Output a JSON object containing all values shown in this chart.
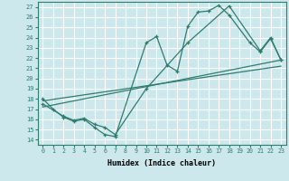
{
  "bg_color": "#cde8ec",
  "grid_color": "#ffffff",
  "line_color": "#2e7d6e",
  "xlim": [
    -0.5,
    23.5
  ],
  "ylim": [
    13.5,
    27.5
  ],
  "xticks": [
    0,
    1,
    2,
    3,
    4,
    5,
    6,
    7,
    8,
    9,
    10,
    11,
    12,
    13,
    14,
    15,
    16,
    17,
    18,
    19,
    20,
    21,
    22,
    23
  ],
  "yticks": [
    14,
    15,
    16,
    17,
    18,
    19,
    20,
    21,
    22,
    23,
    24,
    25,
    26,
    27
  ],
  "xlabel": "Humidex (Indice chaleur)",
  "curve1_x": [
    0,
    1,
    2,
    3,
    4,
    5,
    6,
    7,
    10,
    11,
    12,
    13,
    14,
    15,
    16,
    17,
    18,
    20,
    21,
    22,
    23
  ],
  "curve1_y": [
    18,
    17,
    16.2,
    15.8,
    16.0,
    15.2,
    14.5,
    14.3,
    23.5,
    24.1,
    21.3,
    20.7,
    25.1,
    26.5,
    26.6,
    27.15,
    26.2,
    23.5,
    22.6,
    23.9,
    21.8
  ],
  "curve2_x": [
    0,
    2,
    3,
    4,
    5,
    6,
    7,
    10,
    14,
    18,
    21,
    22,
    23
  ],
  "curve2_y": [
    17.5,
    16.3,
    15.9,
    16.1,
    15.5,
    15.2,
    14.5,
    19.0,
    23.5,
    27.1,
    22.7,
    24.0,
    21.8
  ],
  "trend1_x": [
    0,
    23
  ],
  "trend1_y": [
    17.2,
    21.8
  ],
  "trend2_x": [
    0,
    23
  ],
  "trend2_y": [
    17.8,
    21.2
  ]
}
